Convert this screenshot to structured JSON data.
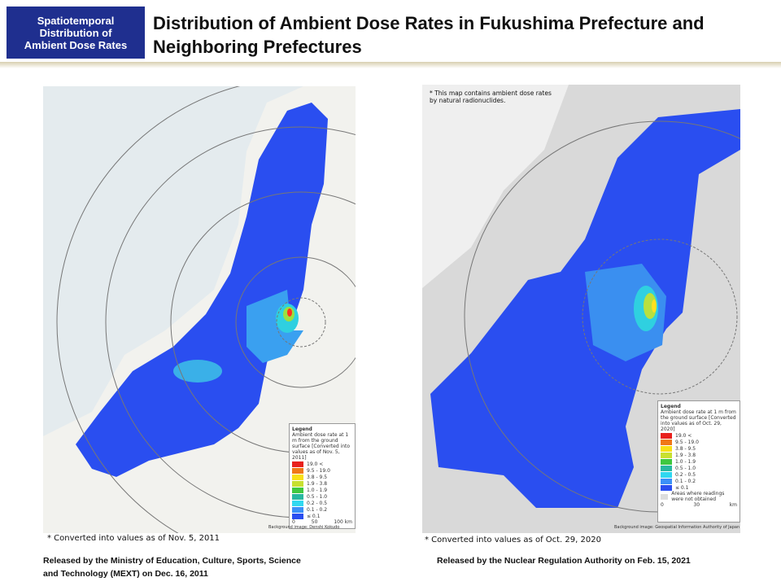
{
  "header": {
    "badge": [
      "Spatiotemporal",
      "Distribution of",
      "Ambient Dose Rates"
    ],
    "title": [
      "Distribution of Ambient Dose Rates in Fukushima Prefecture and",
      "Neighboring Prefectures"
    ]
  },
  "left_map": {
    "legend": {
      "title": "Legend",
      "description": "Ambient dose rate at 1 m from the ground surface [Converted into values as of Nov. 5, 2011]",
      "items": [
        "19.0 <",
        "9.5 - 19.0",
        "3.8 - 9.5",
        "1.9 - 3.8",
        "1.0 - 1.9",
        "0.5 - 1.0",
        "0.2 - 0.5",
        "0.1 - 0.2",
        "≤ 0.1"
      ],
      "scale": [
        "0",
        "50",
        "100 km"
      ]
    },
    "credit": "Background image: Denshi Kokudo",
    "caption": "* Converted into values as of Nov. 5, 2011",
    "source": [
      "Released by the Ministry of Education, Culture, Sports, Science",
      "and Technology (MEXT) on Dec. 16, 2011"
    ]
  },
  "right_map": {
    "note": "* This map contains ambient dose rates by natural radionuclides.",
    "legend": {
      "title": "Legend",
      "description": "Ambient dose rate at 1 m from the ground surface [Converted into values as of Oct. 29, 2020]",
      "items": [
        "19.0 <",
        "9.5 - 19.0",
        "3.8 - 9.5",
        "1.9 - 3.8",
        "1.0 - 1.9",
        "0.5 - 1.0",
        "0.2 - 0.5",
        "0.1 - 0.2",
        "≤ 0.1"
      ],
      "missing": "Areas where readings were not obtained",
      "scale": [
        "0",
        "30",
        "km"
      ]
    },
    "credit": "Background image: Geospatial Information Authority of Japan",
    "caption": "* Converted into values as of Oct. 29, 2020",
    "source": [
      "Released by the Nuclear Regulation Authority on Feb. 15, 2021"
    ]
  }
}
